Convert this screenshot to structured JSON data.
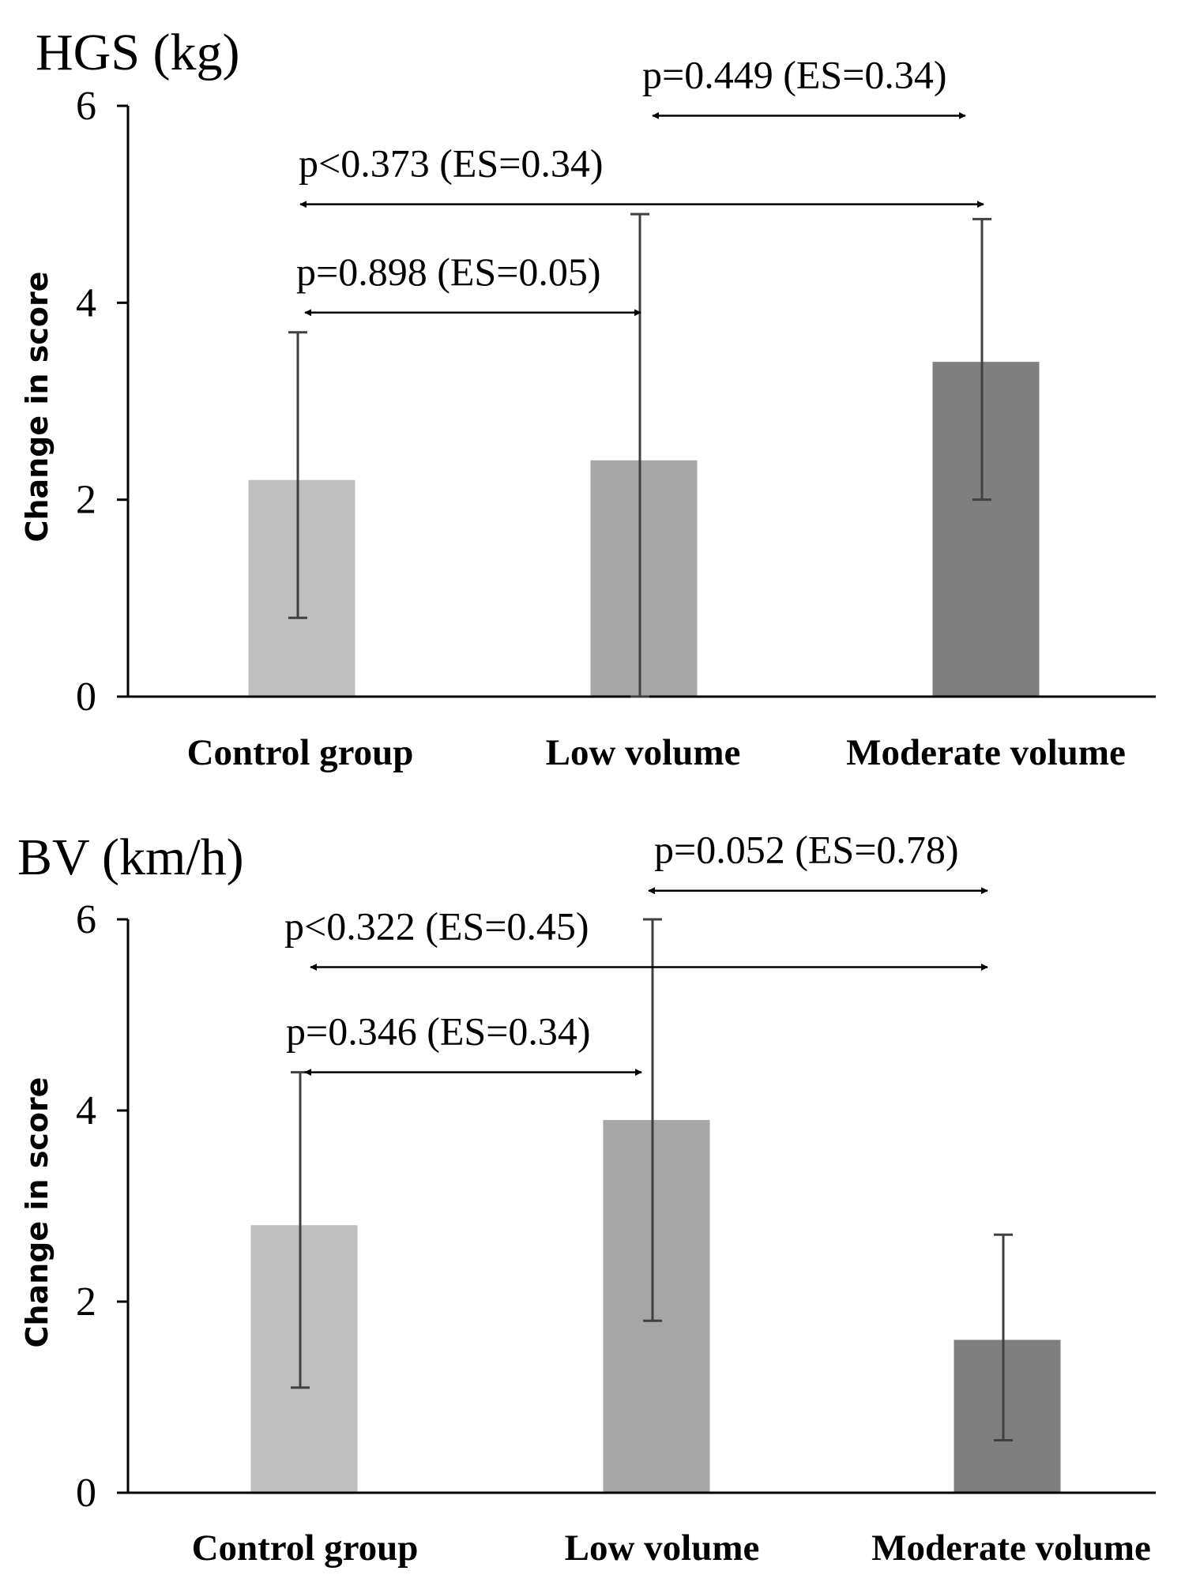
{
  "chart_data": [
    {
      "type": "bar",
      "title": "HGS (kg)",
      "xlabel": "",
      "ylabel": "Change in score",
      "categories": [
        "Control group",
        "Low volume",
        "Moderate volume"
      ],
      "values": [
        2.2,
        2.4,
        3.4
      ],
      "error_high": [
        3.7,
        4.9,
        4.85
      ],
      "error_low": [
        0.8,
        0.0,
        2.0
      ],
      "ylim": [
        0,
        6
      ],
      "yticks": [
        "0",
        "2",
        "4",
        "6"
      ],
      "ytick_values": [
        0,
        2,
        4,
        6
      ],
      "bar_colors": [
        "#bfbfbf",
        "#a6a6a6",
        "#7f7f7f"
      ],
      "comparisons": [
        {
          "from": 1,
          "to": 2,
          "level": 5.9,
          "label": "p=0.449 (ES=0.34)"
        },
        {
          "from": 0,
          "to": 2,
          "level": 5.0,
          "label": "p<0.373 (ES=0.34)"
        },
        {
          "from": 0,
          "to": 1,
          "level": 3.9,
          "label": "p=0.898 (ES=0.05)"
        }
      ]
    },
    {
      "type": "bar",
      "title": "BV (km/h)",
      "xlabel": "",
      "ylabel": "Change in score",
      "categories": [
        "Control group",
        "Low volume",
        "Moderate volume"
      ],
      "values": [
        2.8,
        3.9,
        1.6
      ],
      "error_high": [
        4.4,
        6.0,
        2.7
      ],
      "error_low": [
        1.1,
        1.8,
        0.55
      ],
      "ylim": [
        0,
        6
      ],
      "yticks": [
        "0",
        "2",
        "4",
        "6"
      ],
      "ytick_values": [
        0,
        2,
        4,
        6
      ],
      "bar_colors": [
        "#bfbfbf",
        "#a6a6a6",
        "#7f7f7f"
      ],
      "comparisons": [
        {
          "from": 1,
          "to": 2,
          "level": 6.3,
          "label": "p=0.052 (ES=0.78)"
        },
        {
          "from": 0,
          "to": 2,
          "level": 5.5,
          "label": "p<0.322 (ES=0.45)"
        },
        {
          "from": 0,
          "to": 1,
          "level": 4.4,
          "label": "p=0.346 (ES=0.34)"
        }
      ]
    }
  ]
}
